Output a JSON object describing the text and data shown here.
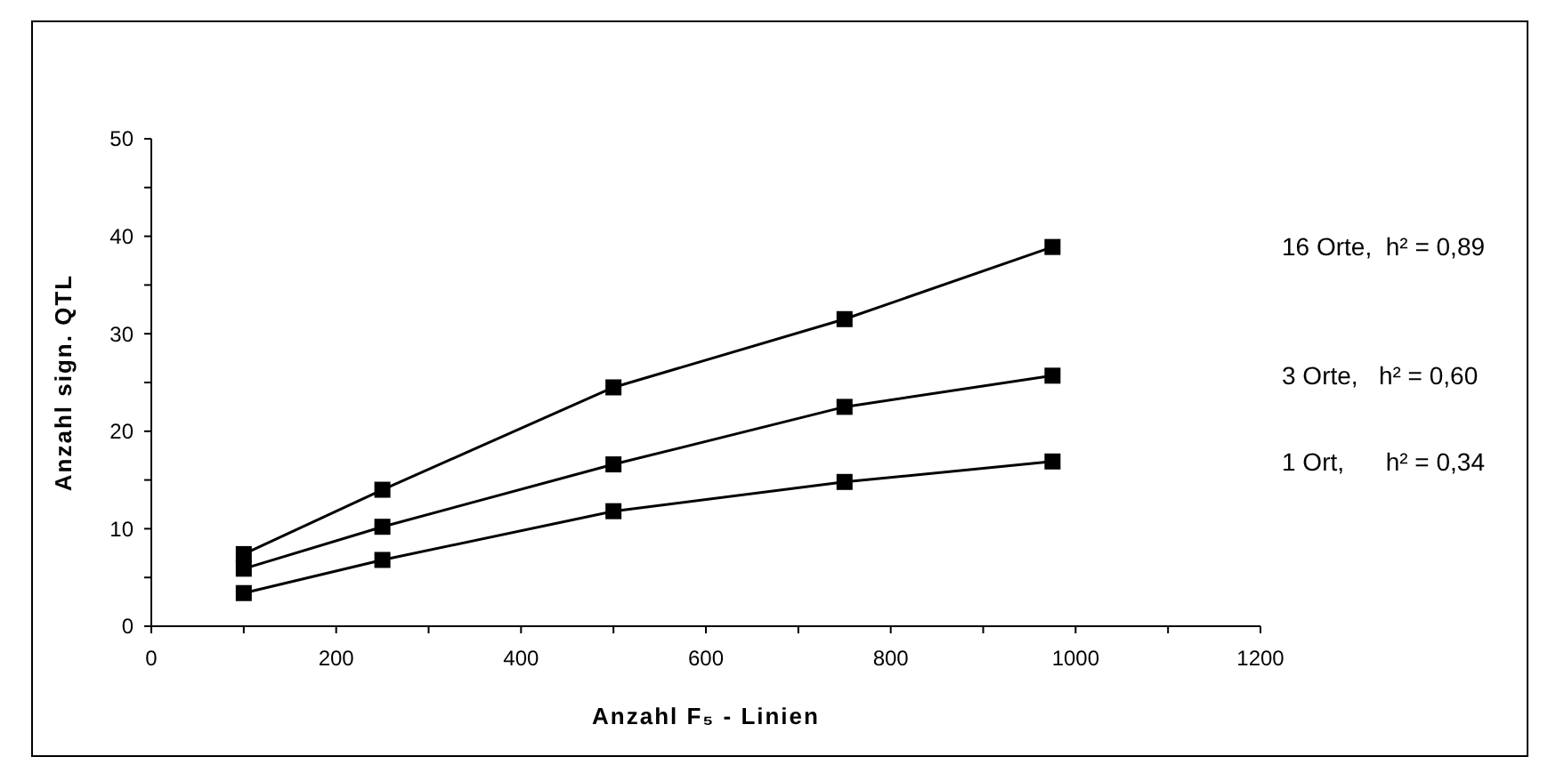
{
  "chart_data": {
    "type": "line",
    "xlabel": "Anzahl F₅ - Linien",
    "ylabel": "Anzahl sign. QTL",
    "x": [
      100,
      250,
      500,
      750,
      975
    ],
    "series": [
      {
        "name": "16 Orte,  h² = 0,89",
        "color": "#000000",
        "values": [
          7.4,
          14.0,
          24.5,
          31.5,
          38.9
        ]
      },
      {
        "name": "3 Orte,   h² = 0,60",
        "color": "#000000",
        "values": [
          5.9,
          10.2,
          16.6,
          22.5,
          25.7
        ]
      },
      {
        "name": "1 Ort,      h² = 0,34",
        "color": "#000000",
        "values": [
          3.4,
          6.8,
          11.8,
          14.8,
          16.9
        ]
      }
    ],
    "xlim": [
      0,
      1200
    ],
    "xticks": [
      0,
      {
        "value": 100,
        "label": null
      },
      200,
      {
        "value": 300,
        "label": null
      },
      400,
      {
        "value": 500,
        "label": null
      },
      600,
      {
        "value": 700,
        "label": null
      },
      800,
      {
        "value": 900,
        "label": null
      },
      1000,
      {
        "value": 1100,
        "label": null
      },
      1200
    ],
    "ylim": [
      0,
      50
    ],
    "yticks": [
      0,
      {
        "value": 5,
        "label": null
      },
      10,
      {
        "value": 15,
        "label": null
      },
      20,
      {
        "value": 25,
        "label": null
      },
      30,
      {
        "value": 35,
        "label": null
      },
      40,
      {
        "value": 45,
        "label": null
      },
      50
    ],
    "grid": false,
    "marker": "square",
    "line_style": "solid"
  }
}
